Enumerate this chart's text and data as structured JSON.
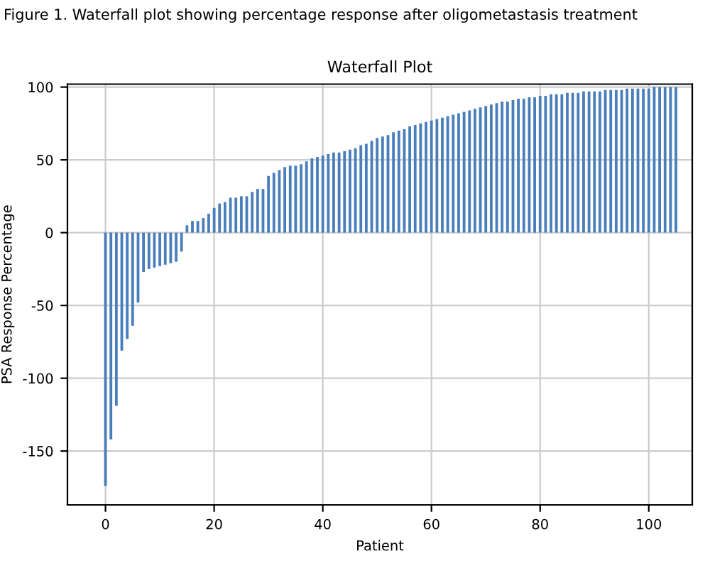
{
  "chart_data": {
    "type": "bar",
    "title": "Waterfall Plot",
    "xlabel": "Patient",
    "ylabel": "PSA Response Percentage",
    "annotations": [
      "Figure 1. Waterfall plot showing percentage response after oligometastasis treatment"
    ],
    "x": [
      0,
      1,
      2,
      3,
      4,
      5,
      6,
      7,
      8,
      9,
      10,
      11,
      12,
      13,
      14,
      15,
      16,
      17,
      18,
      19,
      20,
      21,
      22,
      23,
      24,
      25,
      26,
      27,
      28,
      29,
      30,
      31,
      32,
      33,
      34,
      35,
      36,
      37,
      38,
      39,
      40,
      41,
      42,
      43,
      44,
      45,
      46,
      47,
      48,
      49,
      50,
      51,
      52,
      53,
      54,
      55,
      56,
      57,
      58,
      59,
      60,
      61,
      62,
      63,
      64,
      65,
      66,
      67,
      68,
      69,
      70,
      71,
      72,
      73,
      74,
      75,
      76,
      77,
      78,
      79,
      80,
      81,
      82,
      83,
      84,
      85,
      86,
      87,
      88,
      89,
      90,
      91,
      92,
      93,
      94,
      95,
      96,
      97,
      98,
      99,
      100,
      101,
      102,
      103,
      104,
      105
    ],
    "values": [
      -174,
      -142,
      -119,
      -81,
      -73,
      -64,
      -48,
      -27,
      -25,
      -24,
      -23,
      -22,
      -21,
      -20,
      -13,
      5,
      8,
      8,
      10,
      13,
      17,
      20,
      21,
      24,
      24,
      25,
      25,
      28,
      30,
      30,
      39,
      41,
      43,
      45,
      46,
      46,
      47,
      49,
      51,
      52,
      53,
      54,
      55,
      55,
      56,
      57,
      58,
      60,
      61,
      63,
      65,
      66,
      67,
      69,
      70,
      71,
      73,
      74,
      75,
      76,
      77,
      78,
      79,
      80,
      81,
      82,
      83,
      84,
      85,
      86,
      87,
      88,
      89,
      90,
      90,
      91,
      92,
      92,
      93,
      93,
      94,
      94,
      95,
      95,
      95,
      96,
      96,
      96,
      97,
      97,
      97,
      97,
      98,
      98,
      98,
      98,
      99,
      99,
      99,
      99,
      99,
      100,
      100,
      100,
      100,
      100
    ],
    "color": "#4a7ebb",
    "xlim": [
      -7,
      108
    ],
    "ylim": [
      -187,
      102
    ],
    "xticks": [
      0,
      20,
      40,
      60,
      80,
      100
    ],
    "yticks": [
      -150,
      -100,
      -50,
      0,
      50,
      100
    ],
    "grid": true
  }
}
